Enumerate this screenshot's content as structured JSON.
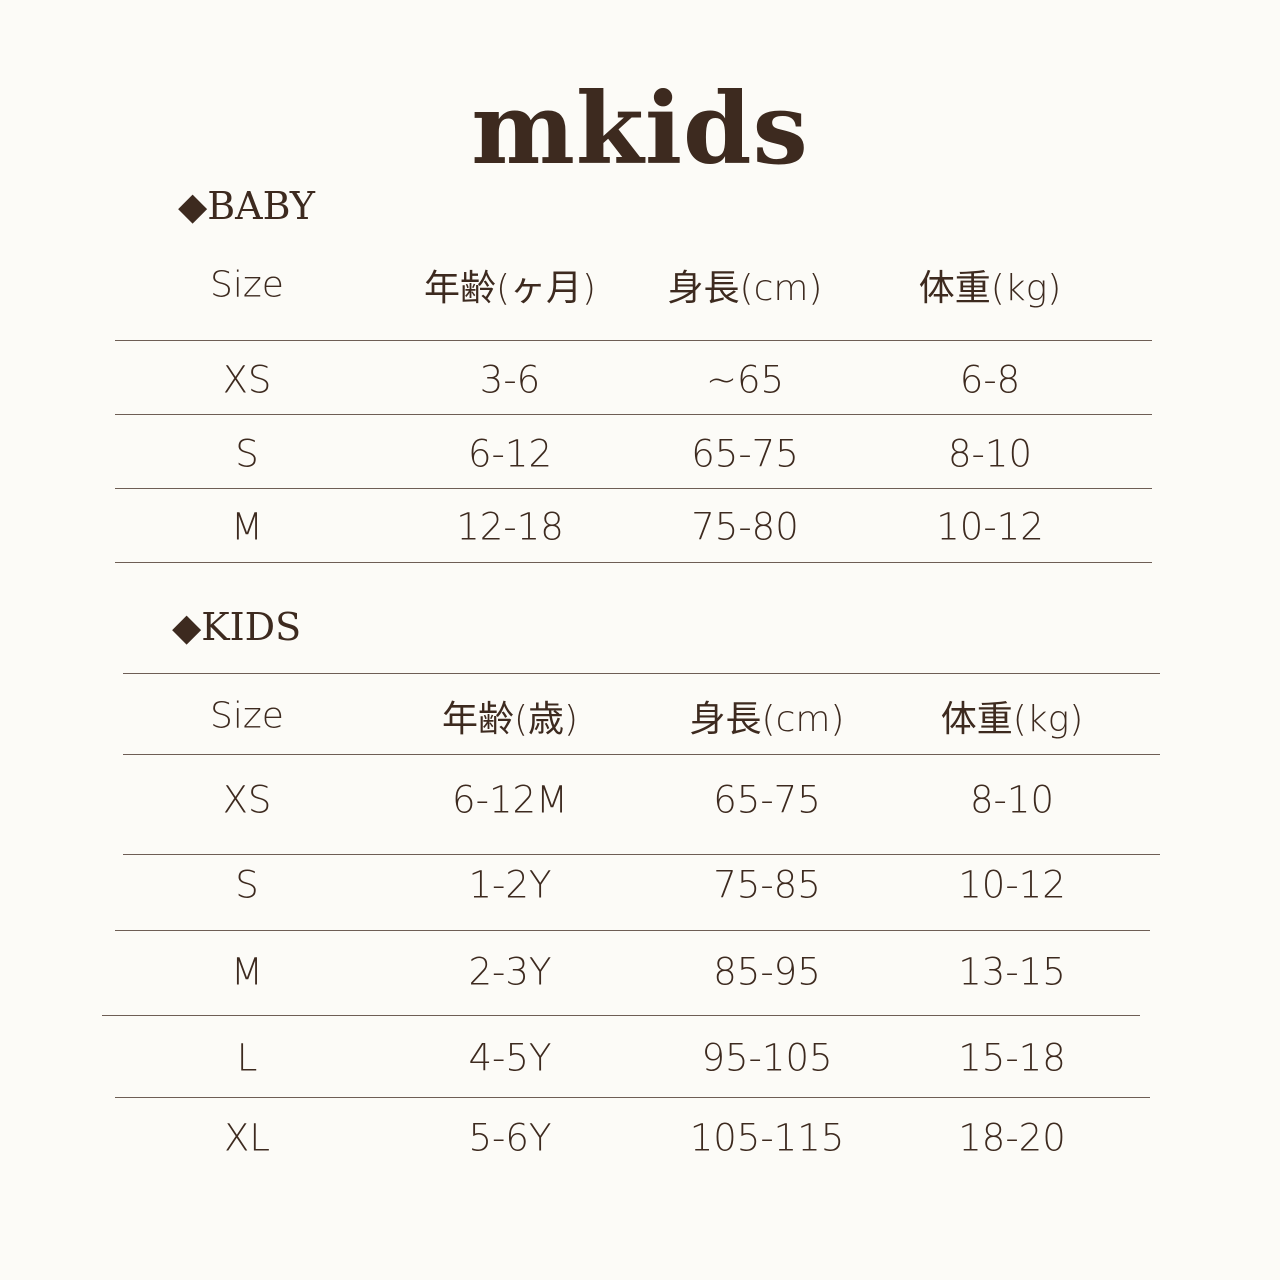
{
  "title": "mkids",
  "baby": {
    "heading": "◆BABY",
    "headers": [
      "Size",
      "年齢(ヶ月)",
      "身長(cm)",
      "体重(kg)"
    ],
    "rows": [
      [
        "XS",
        "3-6",
        "~65",
        "6-8"
      ],
      [
        "S",
        "6-12",
        "65-75",
        "8-10"
      ],
      [
        "M",
        "12-18",
        "75-80",
        "10-12"
      ]
    ]
  },
  "kids": {
    "heading": "◆KIDS",
    "headers": [
      "Size",
      "年齢(歳)",
      "身長(cm)",
      "体重(kg)"
    ],
    "rows": [
      [
        "XS",
        "6-12M",
        "65-75",
        "8-10"
      ],
      [
        "S",
        "1-2Y",
        "75-85",
        "10-12"
      ],
      [
        "M",
        "2-3Y",
        "85-95",
        "13-15"
      ],
      [
        "L",
        "4-5Y",
        "95-105",
        "15-18"
      ],
      [
        "XL",
        "5-6Y",
        "105-115",
        "18-20"
      ]
    ]
  },
  "colors": {
    "text": "#3d2a1f",
    "background": "#fcfbf7",
    "rule": "#6e5e55"
  }
}
